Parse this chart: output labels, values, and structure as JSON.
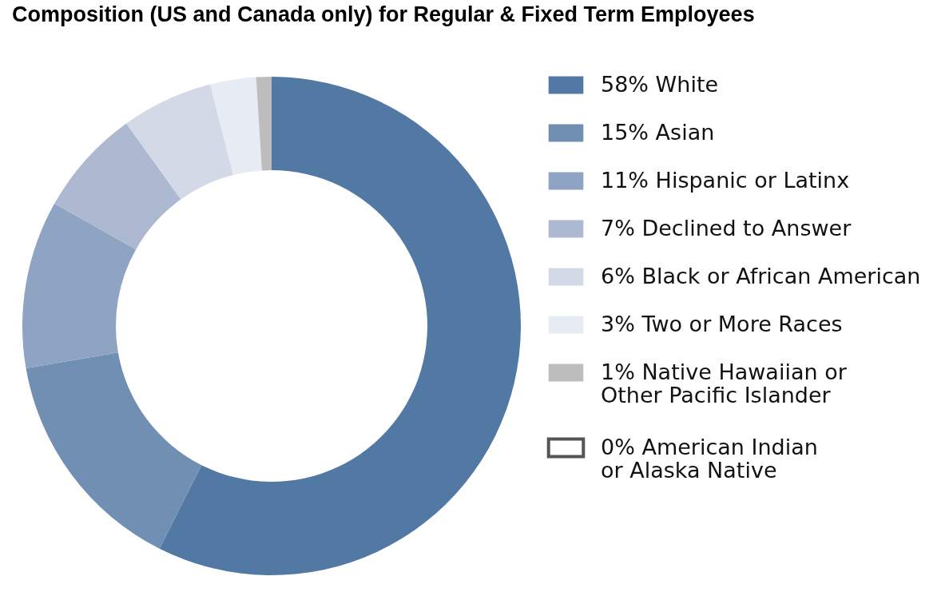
{
  "chart_data": {
    "type": "donut",
    "title": "Composition (US and Canada only) for Regular & Fixed Term Employees",
    "categories": [
      "58% White",
      "15% Asian",
      "11% Hispanic or Latinx",
      "7% Declined to Answer",
      "6% Black or African American",
      "3% Two or More Races",
      "1% Native Hawaiian or\nOther Pacific Islander",
      "0% American Indian\nor Alaska Native"
    ],
    "values": [
      58,
      15,
      11,
      7,
      6,
      3,
      1,
      0
    ],
    "colors": [
      "#5279a3",
      "#718fb3",
      "#8fa3c2",
      "#adb9d1",
      "#d3d9e6",
      "#e7ebf3",
      "#bdbdbd",
      "#ffffff"
    ],
    "legend": "right"
  }
}
